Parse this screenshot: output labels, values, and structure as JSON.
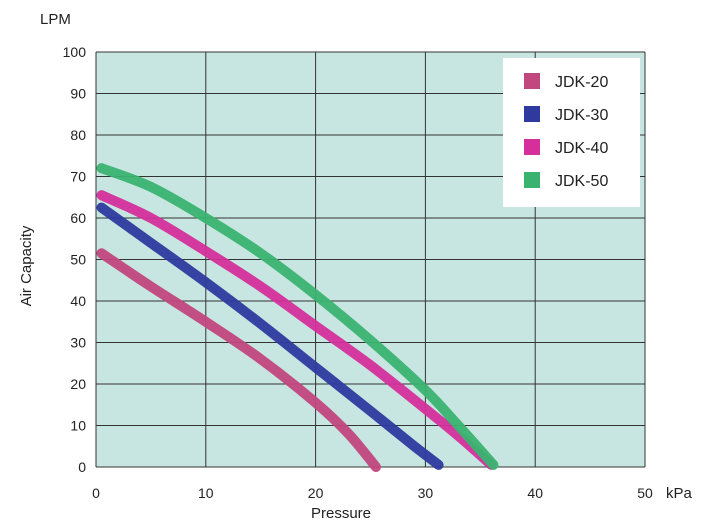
{
  "chart_data": {
    "type": "line",
    "xlabel": "Pressure",
    "ylabel": "Air Capacity",
    "x_unit": "kPa",
    "y_unit": "LPM",
    "xlim": [
      0,
      50
    ],
    "ylim": [
      0,
      100
    ],
    "x_ticks": [
      "0",
      "10",
      "20",
      "30",
      "40",
      "50"
    ],
    "y_ticks": [
      "0",
      "10",
      "20",
      "30",
      "40",
      "50",
      "60",
      "70",
      "80",
      "90",
      "100"
    ],
    "grid": true,
    "legend_position": "top-right",
    "plot_background": "#c8e6e1",
    "series": [
      {
        "name": "JDK-20",
        "color": "#c2477e",
        "x": [
          0.5,
          5,
          10,
          15,
          20,
          23,
          25.5
        ],
        "y": [
          51.5,
          43.5,
          35,
          26,
          15.5,
          8,
          0
        ]
      },
      {
        "name": "JDK-30",
        "color": "#2e3a9e",
        "x": [
          0.5,
          5,
          10,
          15,
          20,
          25,
          29,
          31.2
        ],
        "y": [
          62.5,
          54,
          44.5,
          34.5,
          24,
          13.5,
          5,
          0.5
        ]
      },
      {
        "name": "JDK-40",
        "color": "#d42f9a",
        "x": [
          0.5,
          5,
          10,
          15,
          20,
          25,
          30,
          33,
          36
        ],
        "y": [
          65.5,
          60,
          52,
          43.5,
          34,
          24.5,
          14,
          7.5,
          0.5
        ]
      },
      {
        "name": "JDK-50",
        "color": "#3ab370",
        "x": [
          0.5,
          5,
          10,
          15,
          20,
          25,
          30,
          33,
          36.2
        ],
        "y": [
          72,
          67.5,
          60,
          51.5,
          41.5,
          30.5,
          18.5,
          10,
          0.5
        ]
      }
    ]
  }
}
